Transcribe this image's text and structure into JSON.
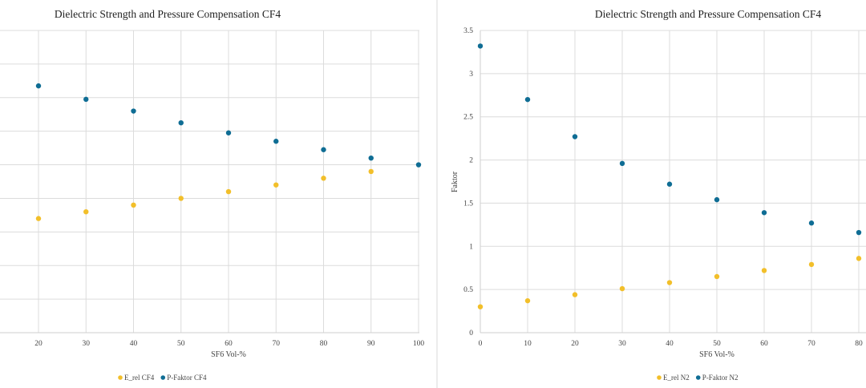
{
  "colors": {
    "e_rel": "#f2bf2a",
    "p_faktor": "#0f6d94",
    "grid": "#dcdcdc"
  },
  "chart_data": [
    {
      "type": "scatter",
      "title": "Dielectric Strength and Pressure Compensation CF4",
      "xlabel": "SF6 Vol-%",
      "ylabel": "",
      "xlim": [
        10,
        100
      ],
      "ylim": [
        0,
        1.8
      ],
      "xticks": [
        20,
        30,
        40,
        50,
        60,
        70,
        80,
        90,
        100
      ],
      "grid": true,
      "legend": "bottom",
      "series": [
        {
          "name": "E_rel CF4",
          "color_key": "e_rel",
          "x": [
            20,
            30,
            40,
            50,
            60,
            70,
            80,
            90
          ],
          "y": [
            0.68,
            0.72,
            0.76,
            0.8,
            0.84,
            0.88,
            0.92,
            0.96
          ]
        },
        {
          "name": "P-Faktor CF4",
          "color_key": "p_faktor",
          "x": [
            20,
            30,
            40,
            50,
            60,
            70,
            80,
            90,
            100
          ],
          "y": [
            1.47,
            1.39,
            1.32,
            1.25,
            1.19,
            1.14,
            1.09,
            1.04,
            1.0
          ]
        }
      ]
    },
    {
      "type": "scatter",
      "title": "Dielectric Strength and Pressure Compensation CF4",
      "xlabel": "SF6 Vol-%",
      "ylabel": "Faktor",
      "xlim": [
        0,
        100
      ],
      "ylim": [
        0,
        3.5
      ],
      "xticks": [
        "0",
        "10",
        "20",
        "30",
        "40",
        "50",
        "60",
        "70",
        "80"
      ],
      "yticks": [
        "0",
        "0.5",
        "1",
        "1.5",
        "2",
        "2.5",
        "3",
        "3.5"
      ],
      "grid": true,
      "legend": "bottom",
      "series": [
        {
          "name": "E_rel N2",
          "color_key": "e_rel",
          "x": [
            0,
            10,
            20,
            30,
            40,
            50,
            60,
            70,
            80
          ],
          "y": [
            0.3,
            0.37,
            0.44,
            0.51,
            0.58,
            0.65,
            0.72,
            0.79,
            0.86
          ]
        },
        {
          "name": "P-Faktor N2",
          "color_key": "p_faktor",
          "x": [
            0,
            10,
            20,
            30,
            40,
            50,
            60,
            70,
            80
          ],
          "y": [
            3.32,
            2.7,
            2.27,
            1.96,
            1.72,
            1.54,
            1.39,
            1.27,
            1.16
          ]
        }
      ]
    }
  ]
}
